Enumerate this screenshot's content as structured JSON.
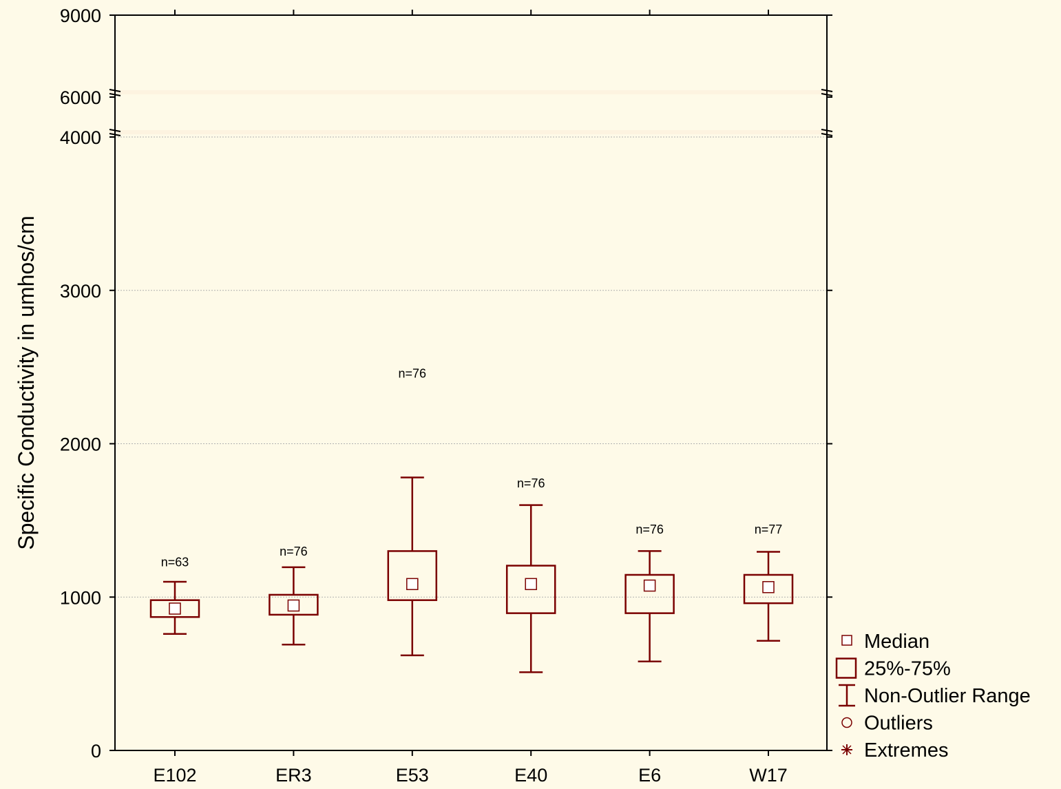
{
  "chart_data": {
    "type": "box",
    "ylabel": "Specific Conductivity in umhos/cm",
    "xlabel": "",
    "title": "",
    "y_ticks": [
      "0",
      "1000",
      "2000",
      "3000",
      "4000",
      "6000",
      "9000"
    ],
    "y_break_segments": [
      [
        0,
        4000
      ],
      [
        4000,
        6000
      ],
      [
        6000,
        9000
      ]
    ],
    "grid": "horizontal dotted",
    "categories": [
      "E102",
      "ER3",
      "E53",
      "E40",
      "E6",
      "W17"
    ],
    "boxes": [
      {
        "name": "E102",
        "min": 760,
        "q1": 870,
        "median": 925,
        "q3": 980,
        "max": 1100,
        "n_label": "n=63",
        "n_value": 1200
      },
      {
        "name": "ER3",
        "min": 690,
        "q1": 885,
        "median": 945,
        "q3": 1015,
        "max": 1195,
        "n_label": "n=76",
        "n_value": 1270
      },
      {
        "name": "E53",
        "min": 620,
        "q1": 980,
        "median": 1085,
        "q3": 1300,
        "max": 1780,
        "n_label": "n=76",
        "n_value": 2430
      },
      {
        "name": "E40",
        "min": 510,
        "q1": 895,
        "median": 1085,
        "q3": 1205,
        "max": 1600,
        "n_label": "n=76",
        "n_value": 1715
      },
      {
        "name": "E6",
        "min": 580,
        "q1": 895,
        "median": 1075,
        "q3": 1145,
        "max": 1300,
        "n_label": "n=76",
        "n_value": 1415
      },
      {
        "name": "W17",
        "min": 715,
        "q1": 960,
        "median": 1065,
        "q3": 1145,
        "max": 1295,
        "n_label": "n=77",
        "n_value": 1415
      }
    ],
    "legend": {
      "placement": "bottom-right",
      "items": [
        "Median",
        "25%-75%",
        "Non-Outlier Range",
        "Outliers",
        "Extremes"
      ]
    },
    "colors": {
      "box": "#7a0000",
      "background": "#fefae8",
      "grid": "#b0b0b0"
    }
  }
}
